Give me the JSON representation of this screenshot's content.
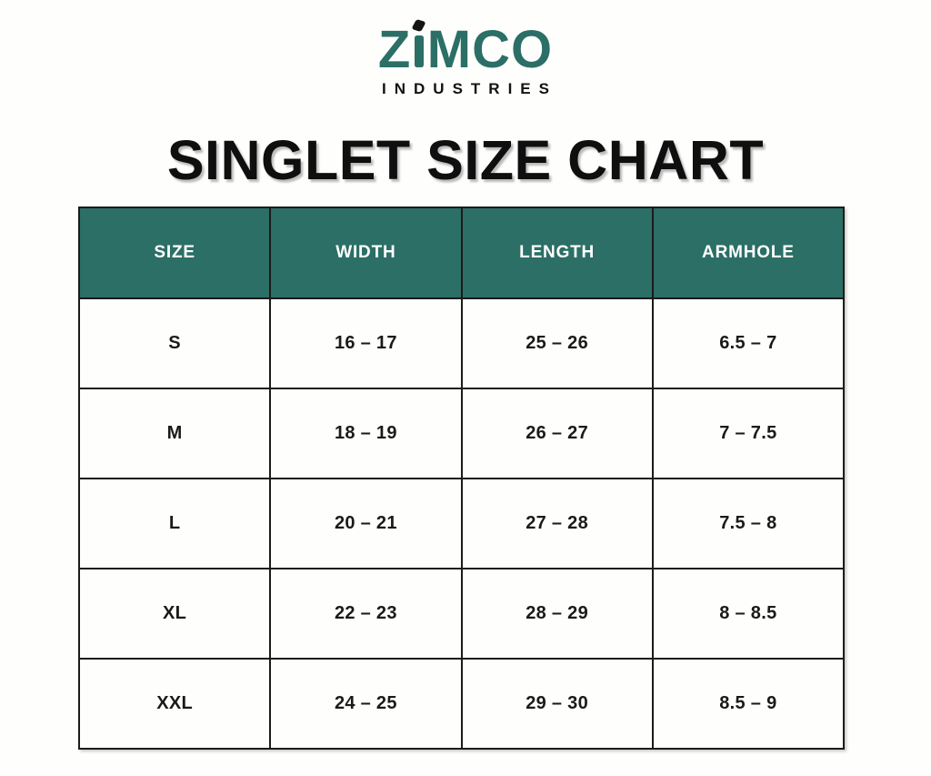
{
  "brand": {
    "wordmark_full": "ZIMCO",
    "wordmark_prefix": "Z",
    "wordmark_suffix": "MCO",
    "subtitle": "INDUSTRIES"
  },
  "page_title": "SINGLET SIZE CHART",
  "colors": {
    "brand_teal": "#2B6F66",
    "table_header_bg": "#2B6F66",
    "table_header_text": "#FFFFFF",
    "table_border": "#1B1B1B",
    "text_dark": "#141414",
    "page_background": "#FEFEFC"
  },
  "size_chart": {
    "type": "table",
    "headers": [
      "SIZE",
      "WIDTH",
      "LENGTH",
      "ARMHOLE"
    ],
    "rows": [
      [
        "S",
        "16 – 17",
        "25 – 26",
        "6.5 – 7"
      ],
      [
        "M",
        "18 – 19",
        "26 – 27",
        "7 – 7.5"
      ],
      [
        "L",
        "20 – 21",
        "27 – 28",
        "7.5 – 8"
      ],
      [
        "XL",
        "22 – 23",
        "28 – 29",
        "8 – 8.5"
      ],
      [
        "XXL",
        "24 – 25",
        "29 – 30",
        "8.5 – 9"
      ]
    ]
  }
}
